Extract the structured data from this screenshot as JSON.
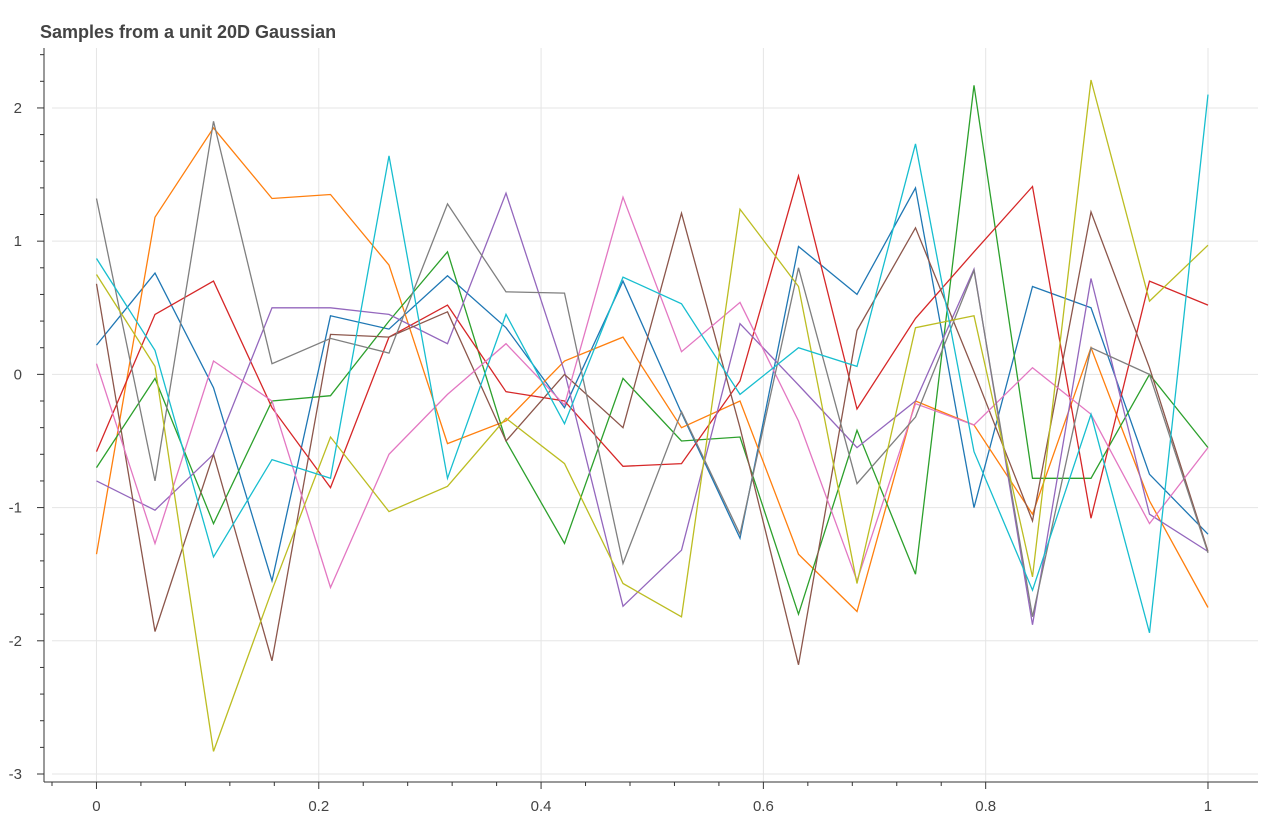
{
  "chart_data": {
    "type": "line",
    "title": "Samples from a unit 20D Gaussian",
    "xlabel": "",
    "ylabel": "",
    "xlim": [
      -0.04,
      1.045
    ],
    "ylim": [
      -3.06,
      2.45
    ],
    "grid": true,
    "legend": "none",
    "x_ticks": [
      0,
      0.2,
      0.4,
      0.6,
      0.8,
      1
    ],
    "x_tick_labels": [
      "0",
      "0.2",
      "0.4",
      "0.6",
      "0.8",
      "1"
    ],
    "y_ticks": [
      -3,
      -2,
      -1,
      0,
      1,
      2
    ],
    "y_tick_labels": [
      "-3",
      "-2",
      "-1",
      "0",
      "1",
      "2"
    ],
    "x": [
      0,
      0.05263,
      0.10526,
      0.15789,
      0.21053,
      0.26316,
      0.31579,
      0.36842,
      0.42105,
      0.47368,
      0.52632,
      0.57895,
      0.63158,
      0.68421,
      0.73684,
      0.78947,
      0.84211,
      0.89474,
      0.94737,
      1
    ],
    "series": [
      {
        "color": "#1f77b4",
        "values": [
          0.22,
          0.76,
          -0.1,
          -1.55,
          0.44,
          0.34,
          0.74,
          0.35,
          -0.25,
          0.7,
          -0.29,
          -1.23,
          0.96,
          0.6,
          1.4,
          -1.0,
          0.66,
          0.5,
          -0.75,
          -1.2
        ]
      },
      {
        "color": "#ff7f0e",
        "values": [
          -1.35,
          1.18,
          1.85,
          1.32,
          1.35,
          0.82,
          -0.52,
          -0.35,
          0.1,
          0.28,
          -0.4,
          -0.2,
          -1.35,
          -1.78,
          -0.2,
          -0.38,
          -1.05,
          0.2,
          -0.95,
          -1.75
        ]
      },
      {
        "color": "#2ca02c",
        "values": [
          -0.7,
          -0.03,
          -1.12,
          -0.2,
          -0.16,
          0.4,
          0.92,
          -0.5,
          -1.27,
          -0.03,
          -0.5,
          -0.47,
          -1.8,
          -0.42,
          -1.5,
          2.17,
          -0.78,
          -0.78,
          0.0,
          -0.55
        ]
      },
      {
        "color": "#d62728",
        "values": [
          -0.58,
          0.45,
          0.7,
          -0.25,
          -0.85,
          0.28,
          0.52,
          -0.13,
          -0.2,
          -0.69,
          -0.67,
          -0.05,
          1.49,
          -0.26,
          0.42,
          0.92,
          1.41,
          -1.08,
          0.7,
          0.52
        ]
      },
      {
        "color": "#9467bd",
        "values": [
          -0.8,
          -1.02,
          -0.6,
          0.5,
          0.5,
          0.45,
          0.23,
          1.36,
          0.02,
          -1.74,
          -1.32,
          0.38,
          -0.08,
          -0.55,
          -0.2,
          0.79,
          -1.88,
          0.72,
          -1.05,
          -1.33
        ]
      },
      {
        "color": "#8c564b",
        "values": [
          0.68,
          -1.93,
          -0.6,
          -2.15,
          0.3,
          0.28,
          0.47,
          -0.5,
          0.0,
          -0.4,
          1.21,
          -0.4,
          -2.18,
          0.33,
          1.1,
          0.02,
          -1.1,
          1.22,
          0.05,
          -1.33
        ]
      },
      {
        "color": "#e377c2",
        "values": [
          0.08,
          -1.27,
          0.1,
          -0.2,
          -1.6,
          -0.6,
          -0.15,
          0.23,
          -0.23,
          1.33,
          0.17,
          0.54,
          -0.35,
          -1.55,
          -0.22,
          -0.38,
          0.05,
          -0.3,
          -1.12,
          -0.55
        ]
      },
      {
        "color": "#7f7f7f",
        "values": [
          1.32,
          -0.8,
          1.9,
          0.08,
          0.27,
          0.16,
          1.28,
          0.62,
          0.61,
          -1.42,
          -0.28,
          -1.2,
          0.8,
          -0.82,
          -0.32,
          0.78,
          -1.82,
          0.2,
          0.0,
          -1.34
        ]
      },
      {
        "color": "#bcbd22",
        "values": [
          0.75,
          0.06,
          -2.83,
          -1.62,
          -0.47,
          -1.03,
          -0.84,
          -0.33,
          -0.67,
          -1.57,
          -1.82,
          1.24,
          0.66,
          -1.57,
          0.35,
          0.44,
          -1.52,
          2.21,
          0.55,
          0.97
        ]
      },
      {
        "color": "#17becf",
        "values": [
          0.87,
          0.18,
          -1.37,
          -0.64,
          -0.78,
          1.64,
          -0.78,
          0.45,
          -0.37,
          0.73,
          0.53,
          -0.15,
          0.2,
          0.06,
          1.73,
          -0.58,
          -1.62,
          -0.3,
          -1.94,
          2.1
        ]
      }
    ]
  }
}
